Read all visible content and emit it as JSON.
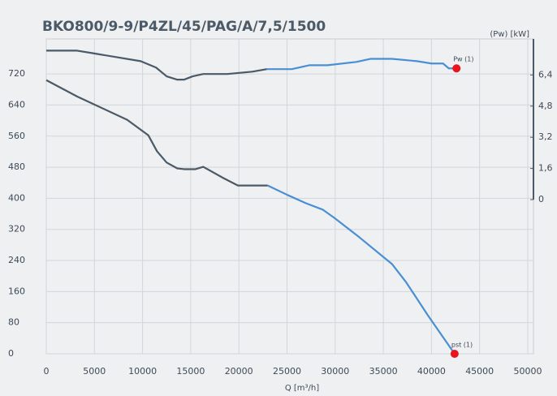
{
  "chart_data": {
    "type": "line",
    "title": "BKO800/9-9/P4ZL/45/PAG/A/7,5/1500",
    "x_label": "Q [m³/h]",
    "y2_label": "(Pw) [kW]",
    "xlim": [
      0,
      50000
    ],
    "xticks": [
      0,
      5000,
      10000,
      15000,
      20000,
      25000,
      30000,
      35000,
      40000,
      45000,
      50000
    ],
    "ylim": [
      0,
      810
    ],
    "yticks": [
      0,
      80,
      160,
      240,
      320,
      400,
      480,
      560,
      640,
      720
    ],
    "y2lim": [
      0,
      8.25
    ],
    "y2ticks": [
      0,
      {
        "value": 1.6,
        "label": "1,6"
      },
      {
        "value": 3.2,
        "label": "3,2"
      },
      {
        "value": 4.8,
        "label": "4,8"
      },
      {
        "value": 6.4,
        "label": "6,4"
      }
    ],
    "grid": true,
    "series": [
      {
        "color": "#4b5a66",
        "axis": "y2",
        "x": [
          0,
          3200,
          4800,
          9800,
          11400,
          12500,
          13600,
          14300,
          15200,
          16300,
          18800,
          21400,
          22900,
          25500,
          27300,
          29200,
          32200,
          33700,
          35900,
          38500,
          40000,
          41200,
          41800,
          42600
        ],
        "values": [
          7.65,
          7.65,
          7.52,
          7.11,
          6.78,
          6.33,
          6.16,
          6.16,
          6.33,
          6.45,
          6.45,
          6.57,
          6.7,
          null,
          null,
          null,
          null,
          null,
          null,
          null,
          null,
          null,
          null,
          null
        ]
      },
      {
        "color": "#4a8fd4",
        "axis": "y2",
        "x": [
          0,
          3200,
          4800,
          9800,
          11400,
          12500,
          13600,
          14300,
          15200,
          16300,
          18800,
          21400,
          22900,
          25500,
          27300,
          29200,
          32200,
          33700,
          35900,
          38500,
          40000,
          41200,
          41800,
          42600
        ],
        "values": [
          null,
          null,
          null,
          null,
          null,
          null,
          null,
          null,
          null,
          null,
          null,
          null,
          6.7,
          6.7,
          6.9,
          6.9,
          7.07,
          7.23,
          7.23,
          7.11,
          6.99,
          6.99,
          6.74,
          6.74
        ]
      },
      {
        "color": "#4b5a66",
        "x": [
          0,
          3200,
          8400,
          10600,
          11500,
          12500,
          13600,
          14300,
          15500,
          16300,
          18400,
          19900,
          23000,
          25100,
          27000,
          28700,
          29900,
          32500,
          35900,
          37400,
          39600,
          42400
        ],
        "values": [
          704,
          662,
          602,
          562,
          521,
          492,
          477,
          475,
          475,
          481,
          452,
          433,
          433,
          null,
          null,
          null,
          null,
          null,
          null,
          null,
          null,
          null
        ]
      },
      {
        "color": "#4a8fd4",
        "x": [
          0,
          3200,
          8400,
          10600,
          11500,
          12500,
          13600,
          14300,
          15500,
          16300,
          18400,
          19900,
          23000,
          25100,
          27000,
          28700,
          29900,
          32500,
          35900,
          37400,
          39600,
          42400
        ],
        "values": [
          null,
          null,
          null,
          null,
          null,
          null,
          null,
          null,
          null,
          null,
          null,
          null,
          433,
          408,
          387,
          371,
          350,
          300,
          231,
          183,
          100,
          0
        ]
      }
    ],
    "annotations": [
      {
        "text": "Pw (1)",
        "x": 42600,
        "y": 6.74,
        "axis": "y2",
        "color": "#e8141e"
      },
      {
        "text": "pst (1)",
        "x": 42400,
        "y": 0,
        "color": "#e8141e"
      }
    ]
  }
}
